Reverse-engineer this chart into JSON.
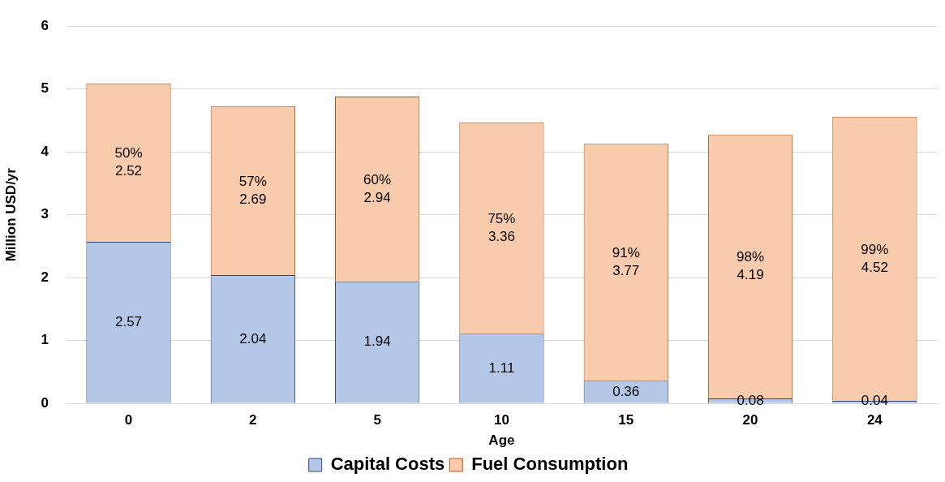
{
  "chart_data": {
    "type": "bar",
    "stacked": true,
    "xlabel": "Age",
    "ylabel": "Million USD/yr",
    "categories": [
      "0",
      "2",
      "5",
      "10",
      "15",
      "20",
      "24"
    ],
    "series": [
      {
        "name": "Capital Costs",
        "color": "#b4c7e7",
        "values": [
          2.57,
          2.04,
          1.94,
          1.11,
          0.36,
          0.08,
          0.04
        ],
        "value_labels": [
          "2.57",
          "2.04",
          "1.94",
          "1.11",
          "0.36",
          "0.08",
          "0.04"
        ]
      },
      {
        "name": "Fuel Consumption",
        "color": "#f8cbad",
        "values": [
          2.52,
          2.69,
          2.94,
          3.36,
          3.77,
          4.19,
          4.52
        ],
        "value_labels": [
          "50%\n2.52",
          "57%\n2.69",
          "60%\n2.94",
          "75%\n3.36",
          "91%\n3.77",
          "98%\n4.19",
          "99%\n4.52"
        ]
      }
    ],
    "ylim": [
      0,
      6
    ],
    "yticks": [
      0,
      1,
      2,
      3,
      4,
      5,
      6
    ],
    "grid": "y",
    "legend": "bottom"
  }
}
